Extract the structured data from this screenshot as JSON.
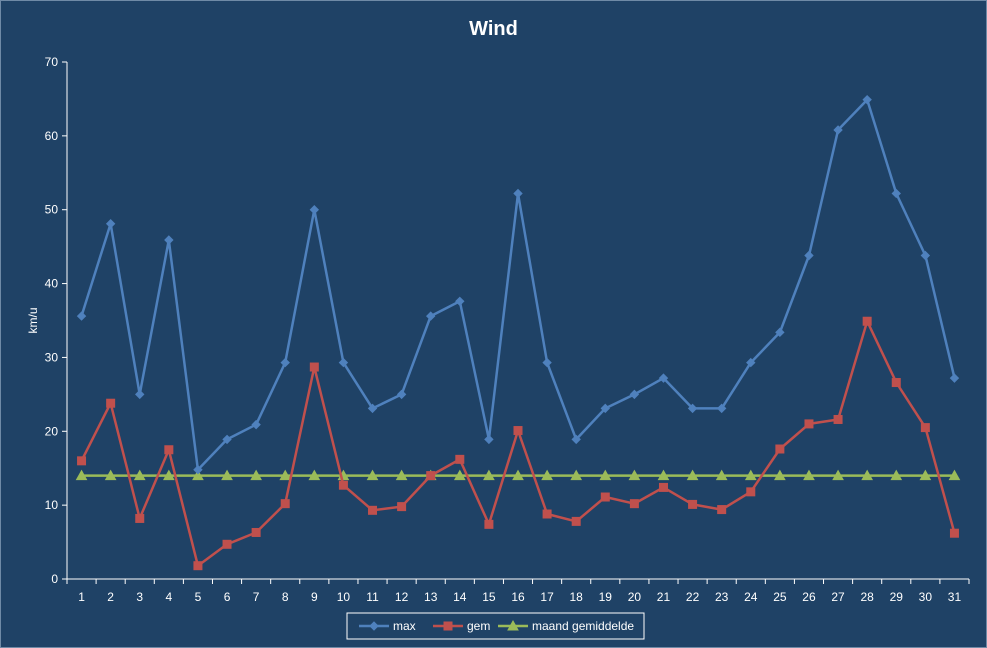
{
  "chart_data": {
    "type": "line",
    "title": "Wind",
    "xlabel": "",
    "ylabel": "km/u",
    "ylim": [
      0,
      70
    ],
    "yticks": [
      0,
      10,
      20,
      30,
      40,
      50,
      60,
      70
    ],
    "grid": false,
    "legend_placement": "bottom",
    "categories": [
      "1",
      "2",
      "3",
      "4",
      "5",
      "6",
      "7",
      "8",
      "9",
      "10",
      "11",
      "12",
      "13",
      "14",
      "15",
      "16",
      "17",
      "18",
      "19",
      "20",
      "21",
      "22",
      "23",
      "24",
      "25",
      "26",
      "27",
      "28",
      "29",
      "30",
      "31"
    ],
    "series": [
      {
        "name": "max",
        "color": "#4f81bd",
        "marker": "diamond",
        "values": [
          35.6,
          48.1,
          25.0,
          45.9,
          14.8,
          18.9,
          20.9,
          29.3,
          50.0,
          29.3,
          23.1,
          25.0,
          35.6,
          37.6,
          18.9,
          52.2,
          29.3,
          18.9,
          23.1,
          25.0,
          27.2,
          23.1,
          23.1,
          29.3,
          33.4,
          43.8,
          60.8,
          64.9,
          52.2,
          43.8,
          27.2
        ]
      },
      {
        "name": "gem",
        "color": "#c0504d",
        "marker": "square",
        "values": [
          16.0,
          23.8,
          8.2,
          17.5,
          1.8,
          4.7,
          6.3,
          10.2,
          28.7,
          12.7,
          9.3,
          9.8,
          14.0,
          16.2,
          7.4,
          20.1,
          8.8,
          7.8,
          11.1,
          10.2,
          12.4,
          10.1,
          9.4,
          11.8,
          17.6,
          21.0,
          21.6,
          34.9,
          26.6,
          20.5,
          6.2
        ]
      },
      {
        "name": "maand gemiddelde",
        "color": "#9bbb59",
        "marker": "triangle",
        "values": [
          14.0,
          14.0,
          14.0,
          14.0,
          14.0,
          14.0,
          14.0,
          14.0,
          14.0,
          14.0,
          14.0,
          14.0,
          14.0,
          14.0,
          14.0,
          14.0,
          14.0,
          14.0,
          14.0,
          14.0,
          14.0,
          14.0,
          14.0,
          14.0,
          14.0,
          14.0,
          14.0,
          14.0,
          14.0,
          14.0,
          14.0
        ]
      }
    ]
  }
}
